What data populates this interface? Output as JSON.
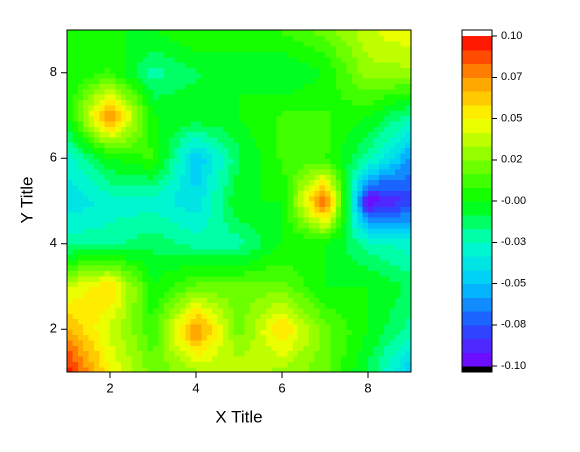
{
  "chart_data": {
    "type": "contour",
    "xlabel": "X Title",
    "ylabel": "Y Title",
    "x": [
      1,
      2,
      3,
      4,
      5,
      6,
      7,
      8,
      9
    ],
    "y": [
      1,
      2,
      3,
      4,
      5,
      6,
      7,
      8,
      9
    ],
    "z": [
      [
        0.1,
        0.05,
        0.02,
        0.03,
        0.04,
        0.03,
        0.02,
        -0.01,
        -0.05
      ],
      [
        0.07,
        0.04,
        0.01,
        0.08,
        0.02,
        0.06,
        0.02,
        0.0,
        -0.02
      ],
      [
        0.04,
        0.06,
        0.0,
        0.02,
        0.02,
        0.02,
        0.0,
        0.0,
        -0.01
      ],
      [
        -0.02,
        -0.02,
        -0.01,
        -0.02,
        -0.02,
        0.0,
        0.0,
        -0.02,
        -0.03
      ],
      [
        -0.04,
        -0.03,
        -0.03,
        -0.04,
        0.0,
        0.0,
        0.09,
        -0.1,
        -0.08
      ],
      [
        -0.03,
        0.0,
        0.01,
        -0.05,
        -0.01,
        0.01,
        0.01,
        -0.02,
        -0.06
      ],
      [
        0.0,
        0.08,
        0.0,
        0.0,
        0.0,
        0.01,
        0.01,
        0.0,
        -0.02
      ],
      [
        0.0,
        0.01,
        -0.02,
        -0.01,
        0.0,
        -0.01,
        0.0,
        0.03,
        0.03
      ],
      [
        0.0,
        0.0,
        0.0,
        0.01,
        0.0,
        0.01,
        0.02,
        0.04,
        0.05
      ]
    ],
    "xlim": [
      1,
      9
    ],
    "ylim": [
      1,
      9
    ],
    "xticks": [
      2,
      4,
      6,
      8
    ],
    "yticks": [
      2,
      4,
      6,
      8
    ],
    "zlim": [
      -0.1,
      0.1
    ],
    "n_levels": 24,
    "colormap": [
      "#7a00ff",
      "#2050ff",
      "#00c8ff",
      "#00ffc8",
      "#00ff00",
      "#80ff00",
      "#ffff00",
      "#ff9600",
      "#ff0000"
    ],
    "colorbar_ticks": [
      {
        "value": -0.1,
        "label": "-0.10"
      },
      {
        "value": -0.075,
        "label": "-0.08"
      },
      {
        "value": -0.05,
        "label": "-0.05"
      },
      {
        "value": -0.025,
        "label": "-0.03"
      },
      {
        "value": 0,
        "label": "-0.00"
      },
      {
        "value": 0.025,
        "label": "0.02"
      },
      {
        "value": 0.05,
        "label": "0.05"
      },
      {
        "value": 0.075,
        "label": "0.07"
      },
      {
        "value": 0.1,
        "label": "0.10"
      }
    ]
  }
}
